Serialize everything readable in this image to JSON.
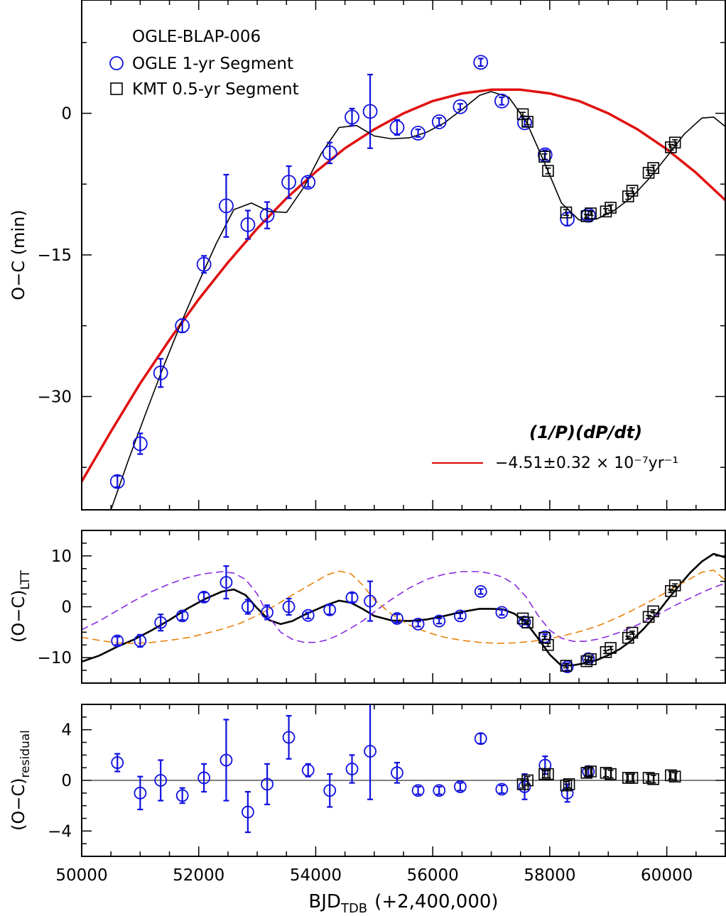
{
  "chart_data": [
    {
      "type": "scatter",
      "panel": "top",
      "title": "OGLE-BLAP-006",
      "xlabel": "",
      "ylabel": "O−C (min)",
      "xlim": [
        50000,
        61000
      ],
      "ylim": [
        -42,
        12
      ],
      "yticks": [
        0,
        -15,
        -30
      ],
      "ytick_labels": [
        "0",
        "−15",
        "−30"
      ],
      "legend": {
        "position": "top-left",
        "title": "OGLE-BLAP-006",
        "entries": [
          {
            "marker": "circle",
            "color": "#1010e0",
            "label": "OGLE 1-yr Segment"
          },
          {
            "marker": "square",
            "color": "#000000",
            "label": "KMT 0.5-yr Segment"
          }
        ]
      },
      "fit_legend": {
        "position": "bottom-right",
        "title": "(1/P)(dP/dt)",
        "label": "−4.51±0.32 × 10⁻⁷yr⁻¹",
        "color": "#e01010"
      },
      "series": [
        {
          "name": "OGLE 1-yr Segment",
          "marker": "circle",
          "color": "#1010e0",
          "x": [
            50610,
            51000,
            51350,
            51720,
            52090,
            52470,
            52840,
            53170,
            53540,
            53870,
            54240,
            54620,
            54930,
            55390,
            55750,
            56110,
            56470,
            56820,
            57180,
            57570,
            57920,
            58300,
            58660
          ],
          "y": [
            -39,
            -35,
            -27.5,
            -22.5,
            -16,
            -9.8,
            -11.8,
            -10.8,
            -7.3,
            -7.3,
            -4.2,
            -0.4,
            0.2,
            -1.5,
            -2.1,
            -0.9,
            0.7,
            5.4,
            1.3,
            -1,
            -4.4,
            -11.2,
            -10.8
          ],
          "yerr": [
            0.6,
            1.1,
            1.5,
            0.7,
            0.9,
            3.3,
            1.5,
            1.4,
            1.7,
            0.5,
            1.1,
            0.9,
            3.9,
            0.8,
            0.4,
            0.4,
            0.3,
            0.4,
            0.4,
            0.4,
            0.5,
            0.7,
            0.5
          ]
        },
        {
          "name": "KMT 0.5-yr Segment",
          "marker": "square",
          "color": "#000000",
          "x": [
            57540,
            57620,
            57910,
            57970,
            58280,
            58630,
            58700,
            58960,
            59040,
            59340,
            59410,
            59690,
            59770,
            60070,
            60140
          ],
          "y": [
            -0.1,
            -0.9,
            -4.6,
            -6.1,
            -10.5,
            -10.9,
            -10.6,
            -10.4,
            -10.0,
            -8.8,
            -8.2,
            -6.3,
            -5.8,
            -3.6,
            -3.1
          ],
          "yerr": [
            0.2,
            0.3,
            0.3,
            0.3,
            0.3,
            0.2,
            0.2,
            0.3,
            0.3,
            0.3,
            0.3,
            0.3,
            0.3,
            0.3,
            0.3
          ]
        },
        {
          "name": "Quadratic fit",
          "style": "line",
          "color": "#e01010",
          "x": [
            50000,
            50500,
            51000,
            51500,
            52000,
            52500,
            53000,
            53500,
            54000,
            54500,
            55000,
            55500,
            56000,
            56500,
            57000,
            57500,
            58000,
            58500,
            59000,
            59500,
            60000,
            60500,
            61000
          ],
          "y": [
            -39.0,
            -33.7,
            -28.6,
            -24.0,
            -19.7,
            -15.8,
            -12.2,
            -9.0,
            -6.2,
            -3.7,
            -1.7,
            0.0,
            1.3,
            2.1,
            2.5,
            2.5,
            2.1,
            1.3,
            0.0,
            -1.7,
            -3.8,
            -6.3,
            -9.2
          ]
        },
        {
          "name": "Quadratic + LTT model",
          "style": "line",
          "color": "#000000",
          "x": [
            50500,
            50800,
            51100,
            51400,
            51700,
            52000,
            52300,
            52600,
            52900,
            53200,
            53500,
            53800,
            54100,
            54400,
            54700,
            55000,
            55300,
            55600,
            55900,
            56200,
            56500,
            56800,
            57000,
            57300,
            57600,
            57900,
            58200,
            58500,
            58800,
            59100,
            59400,
            59700,
            60000,
            60300,
            60600,
            60800,
            61000
          ],
          "y": [
            -42,
            -36.7,
            -31.7,
            -26.8,
            -22.2,
            -17.9,
            -13.8,
            -10.2,
            -9.5,
            -10.4,
            -10.5,
            -7.8,
            -4.2,
            -1.5,
            -1.3,
            -2.4,
            -2.7,
            -2.6,
            -2.0,
            -1.0,
            0.4,
            1.9,
            2.3,
            1.7,
            -0.9,
            -5.1,
            -9.5,
            -11.3,
            -11.2,
            -10.3,
            -8.9,
            -6.9,
            -4.6,
            -2.2,
            -0.5,
            -0.4,
            -1.4
          ]
        }
      ]
    },
    {
      "type": "scatter",
      "panel": "middle",
      "xlabel": "",
      "ylabel": "(O−C)",
      "ylabel_sub": "LTT",
      "xlim": [
        50000,
        61000
      ],
      "ylim": [
        -15,
        15
      ],
      "yticks": [
        10,
        0,
        -10
      ],
      "ytick_labels": [
        "10",
        "0",
        "−10"
      ],
      "series": [
        {
          "name": "OGLE 1-yr Segment",
          "marker": "circle",
          "color": "#1010e0",
          "x": [
            50610,
            51000,
            51350,
            51720,
            52090,
            52470,
            52840,
            53170,
            53540,
            53870,
            54240,
            54620,
            54930,
            55390,
            55750,
            56110,
            56470,
            56820,
            57180,
            57570,
            57920,
            58300,
            58660
          ],
          "y": [
            -6.7,
            -6.7,
            -3.1,
            -1.8,
            1.9,
            4.8,
            0,
            -1.1,
            0,
            -1.7,
            -0.6,
            1.8,
            1.1,
            -2.3,
            -3.4,
            -2.8,
            -1.8,
            3.0,
            -1.1,
            -3.0,
            -5.9,
            -11.8,
            -10.2
          ],
          "yerr": [
            0.8,
            1.2,
            1.6,
            0.8,
            0.9,
            3.2,
            1.4,
            1.4,
            1.6,
            0.6,
            0.9,
            0.9,
            3.9,
            0.8,
            0.5,
            0.5,
            0.5,
            0.5,
            0.5,
            0.5,
            0.5,
            0.7,
            0.5
          ]
        },
        {
          "name": "KMT 0.5-yr Segment",
          "marker": "square",
          "color": "#000000",
          "x": [
            57540,
            57620,
            57910,
            57970,
            58280,
            58630,
            58700,
            58960,
            59040,
            59340,
            59410,
            59690,
            59770,
            60070,
            60140
          ],
          "y": [
            -2.3,
            -3.1,
            -6.1,
            -7.5,
            -11.6,
            -10.7,
            -10.3,
            -8.9,
            -8.1,
            -6.1,
            -5.1,
            -2.0,
            -0.9,
            3.1,
            4.2
          ],
          "yerr": [
            0.3,
            0.3,
            0.3,
            0.3,
            0.4,
            0.3,
            0.3,
            0.3,
            0.3,
            0.3,
            0.3,
            0.3,
            0.3,
            0.3,
            0.3
          ]
        },
        {
          "name": "LTT total model",
          "style": "line",
          "color": "#000000",
          "x": [
            50000,
            50300,
            50600,
            50900,
            51200,
            51500,
            51800,
            52100,
            52400,
            52600,
            52800,
            53000,
            53200,
            53400,
            53600,
            53800,
            54000,
            54200,
            54400,
            54600,
            54800,
            55000,
            55300,
            55600,
            55900,
            56200,
            56500,
            56800,
            57000,
            57200,
            57400,
            57600,
            57800,
            58000,
            58200,
            58400,
            58600,
            58800,
            59000,
            59200,
            59400,
            59600,
            59800,
            60000,
            60200,
            60400,
            60600,
            60800,
            61000
          ],
          "y": [
            -10.8,
            -9.6,
            -7.9,
            -6.4,
            -4.6,
            -2.6,
            -0.4,
            1.5,
            3.0,
            3.4,
            2.3,
            -0.3,
            -2.6,
            -3.4,
            -2.8,
            -1.6,
            -0.6,
            0.4,
            1.2,
            0.8,
            -0.4,
            -1.8,
            -2.7,
            -2.8,
            -2.5,
            -1.8,
            -1.0,
            -0.4,
            -0.4,
            -0.5,
            -1.4,
            -3.2,
            -6.2,
            -9.4,
            -11.6,
            -11.5,
            -11.1,
            -10.5,
            -9.5,
            -8.3,
            -6.6,
            -4.4,
            -1.8,
            1.2,
            4.0,
            6.7,
            8.9,
            10.4,
            9.7
          ]
        },
        {
          "name": "LTT component 1",
          "style": "dashed",
          "color": "#8a2be2",
          "x": [
            50000,
            50300,
            50600,
            50900,
            51200,
            51500,
            51800,
            52100,
            52400,
            52600,
            52800,
            53000,
            53200,
            53400,
            53600,
            53800,
            54000,
            54200,
            54400,
            54600,
            54800,
            55000,
            55300,
            55600,
            55900,
            56200,
            56500,
            56800,
            57000,
            57200,
            57400,
            57600,
            57800,
            58000,
            58200,
            58400,
            58600,
            58800,
            59000,
            59200,
            59400,
            59600,
            59800,
            60000,
            60200,
            60400,
            60600,
            60800,
            61000
          ],
          "y": [
            -4.5,
            -2.8,
            -0.8,
            1.2,
            3.0,
            4.5,
            5.7,
            6.5,
            6.9,
            6.6,
            5.4,
            2.5,
            -2.0,
            -5.0,
            -6.4,
            -7.0,
            -7.0,
            -6.5,
            -5.5,
            -4.2,
            -2.8,
            -1.0,
            1.5,
            3.7,
            5.4,
            6.4,
            6.9,
            6.9,
            6.5,
            5.8,
            4.4,
            1.9,
            -1.7,
            -4.6,
            -6.2,
            -6.8,
            -6.8,
            -6.4,
            -5.8,
            -5.0,
            -4.1,
            -3.0,
            -1.8,
            -0.6,
            0.6,
            1.7,
            2.8,
            3.8,
            4.6
          ]
        },
        {
          "name": "LTT component 2",
          "style": "dashed",
          "color": "#e8820c",
          "x": [
            50000,
            50300,
            50600,
            50900,
            51200,
            51500,
            51800,
            52100,
            52400,
            52700,
            53000,
            53300,
            53600,
            53900,
            54200,
            54400,
            54600,
            54800,
            55000,
            55300,
            55600,
            55900,
            56200,
            56500,
            56800,
            57100,
            57400,
            57700,
            58000,
            58300,
            58600,
            58900,
            59200,
            59500,
            59800,
            60100,
            60400,
            60600,
            60800,
            61000
          ],
          "y": [
            -6.0,
            -6.6,
            -7.1,
            -7.2,
            -7.0,
            -6.6,
            -6.1,
            -5.3,
            -4.4,
            -3.3,
            -1.7,
            0.2,
            2.3,
            4.3,
            6.3,
            7.0,
            6.5,
            4.3,
            1.4,
            -1.5,
            -3.6,
            -5.0,
            -6.0,
            -6.6,
            -7.0,
            -7.2,
            -7.1,
            -6.8,
            -6.3,
            -5.5,
            -4.6,
            -3.4,
            -1.9,
            -0.2,
            1.6,
            3.6,
            5.5,
            6.8,
            7.2,
            5.2
          ]
        }
      ]
    },
    {
      "type": "scatter",
      "panel": "bottom",
      "xlabel": "BJD",
      "xlabel_sub": "TDB",
      "xlabel_suffix": "(+2,400,000)",
      "ylabel": "(O−C)",
      "ylabel_sub": "residual",
      "xlim": [
        50000,
        61000
      ],
      "ylim": [
        -6,
        6
      ],
      "xticks": [
        50000,
        52000,
        54000,
        56000,
        58000,
        60000
      ],
      "xtick_labels": [
        "50000",
        "52000",
        "54000",
        "56000",
        "58000",
        "60000"
      ],
      "yticks": [
        4,
        0,
        -4
      ],
      "ytick_labels": [
        "4",
        "0",
        "−4"
      ],
      "series": [
        {
          "name": "OGLE 1-yr Segment",
          "marker": "circle",
          "color": "#1010e0",
          "x": [
            50610,
            51000,
            51350,
            51720,
            52090,
            52470,
            52840,
            53170,
            53540,
            53870,
            54240,
            54620,
            54930,
            55390,
            55750,
            56110,
            56470,
            56820,
            57180,
            57570,
            57920,
            58300,
            58660
          ],
          "y": [
            1.4,
            -1.0,
            0.0,
            -1.2,
            0.2,
            1.6,
            -2.5,
            -0.3,
            3.4,
            0.8,
            -0.8,
            0.9,
            2.3,
            0.6,
            -0.8,
            -0.8,
            -0.5,
            3.3,
            -0.7,
            -0.5,
            1.2,
            -1.0,
            0.7
          ],
          "yerr": [
            0.7,
            1.3,
            1.6,
            0.6,
            1.1,
            3.2,
            1.6,
            1.6,
            1.7,
            0.5,
            1.3,
            1.1,
            3.8,
            0.8,
            0.3,
            0.3,
            0.3,
            0.4,
            0.3,
            1.0,
            0.7,
            0.7,
            0.4
          ]
        },
        {
          "name": "KMT 0.5-yr Segment",
          "marker": "square",
          "color": "#000000",
          "x": [
            57540,
            57620,
            57910,
            57970,
            58280,
            58330,
            58630,
            58700,
            58960,
            59040,
            59340,
            59410,
            59690,
            59770,
            60070,
            60140
          ],
          "y": [
            -0.3,
            0.0,
            0.5,
            0.5,
            -0.4,
            -0.3,
            0.6,
            0.7,
            0.6,
            0.5,
            0.2,
            0.2,
            0.2,
            0.1,
            0.4,
            0.3
          ],
          "yerr": [
            0.3,
            0.3,
            0.3,
            0.3,
            0.3,
            0.3,
            0.3,
            0.3,
            0.3,
            0.3,
            0.3,
            0.3,
            0.3,
            0.3,
            0.3,
            0.3
          ]
        }
      ]
    }
  ]
}
